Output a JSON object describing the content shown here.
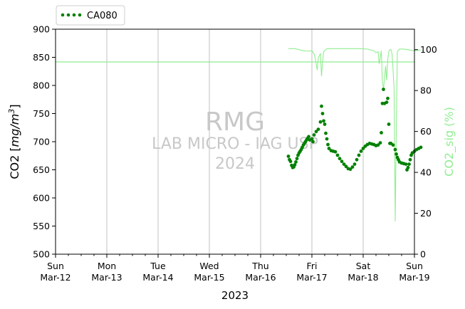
{
  "chart_data": {
    "type": "scatter",
    "title": "",
    "xlabel": "2023",
    "ylabel": "CO2 [mg/m³]",
    "ylabel_base": "CO2 [",
    "ylabel_unit": "mg/m",
    "ylabel_exp": "3",
    "ylabel_close": "]",
    "y2label": "CO2_sig (%)",
    "xlim": [
      "2023-03-12",
      "2023-03-19"
    ],
    "ylim": [
      500,
      900
    ],
    "y2lim": [
      0,
      110
    ],
    "y_ticks": [
      500,
      550,
      600,
      650,
      700,
      750,
      800,
      850,
      900
    ],
    "y2_ticks": [
      0,
      20,
      40,
      60,
      80,
      100
    ],
    "x_ticks": [
      {
        "date": "2023-03-12",
        "line1": "Sun",
        "line2": "Mar-12"
      },
      {
        "date": "2023-03-13",
        "line1": "Mon",
        "line2": "Mar-13"
      },
      {
        "date": "2023-03-14",
        "line1": "Tue",
        "line2": "Mar-14"
      },
      {
        "date": "2023-03-15",
        "line1": "Wed",
        "line2": "Mar-15"
      },
      {
        "date": "2023-03-16",
        "line1": "Thu",
        "line2": "Mar-16"
      },
      {
        "date": "2023-03-17",
        "line1": "Fri",
        "line2": "Mar-17"
      },
      {
        "date": "2023-03-18",
        "line1": "Sat",
        "line2": "Mar-18"
      },
      {
        "date": "2023-03-19",
        "line1": "Sun",
        "line2": "Mar-19"
      }
    ],
    "grid": "vertical at day ticks",
    "legend": "top-left, outside plot",
    "reference_line": {
      "axis": "y2",
      "value": 94,
      "color": "#90ee90"
    },
    "watermark": [
      "RMG",
      "LAB MICRO - IAG USP",
      "2024"
    ],
    "series": [
      {
        "name": "CA080",
        "axis": "y",
        "style": "dots",
        "color": "#008000",
        "points": [
          [
            "2023-03-16T13:00",
            674
          ],
          [
            "2023-03-16T13:30",
            668
          ],
          [
            "2023-03-16T14:00",
            665
          ],
          [
            "2023-03-16T14:30",
            658
          ],
          [
            "2023-03-16T15:00",
            654
          ],
          [
            "2023-03-16T15:30",
            655
          ],
          [
            "2023-03-16T16:00",
            659
          ],
          [
            "2023-03-16T16:30",
            664
          ],
          [
            "2023-03-16T17:00",
            670
          ],
          [
            "2023-03-16T17:30",
            676
          ],
          [
            "2023-03-16T18:00",
            680
          ],
          [
            "2023-03-16T18:30",
            683
          ],
          [
            "2023-03-16T19:00",
            686
          ],
          [
            "2023-03-16T19:30",
            690
          ],
          [
            "2023-03-16T20:00",
            694
          ],
          [
            "2023-03-16T20:30",
            697
          ],
          [
            "2023-03-16T21:00",
            700
          ],
          [
            "2023-03-16T21:30",
            703
          ],
          [
            "2023-03-16T22:00",
            706
          ],
          [
            "2023-03-16T22:30",
            709
          ],
          [
            "2023-03-16T23:00",
            703
          ],
          [
            "2023-03-17T00:00",
            705
          ],
          [
            "2023-03-17T00:30",
            700
          ],
          [
            "2023-03-17T01:00",
            712
          ],
          [
            "2023-03-17T02:00",
            718
          ],
          [
            "2023-03-17T03:00",
            722
          ],
          [
            "2023-03-17T04:00",
            735
          ],
          [
            "2023-03-17T04:30",
            763
          ],
          [
            "2023-03-17T05:00",
            750
          ],
          [
            "2023-03-17T05:30",
            737
          ],
          [
            "2023-03-17T06:00",
            731
          ],
          [
            "2023-03-17T06:30",
            715
          ],
          [
            "2023-03-17T07:00",
            705
          ],
          [
            "2023-03-17T07:30",
            695
          ],
          [
            "2023-03-17T08:00",
            688
          ],
          [
            "2023-03-17T09:00",
            684
          ],
          [
            "2023-03-17T10:00",
            683
          ],
          [
            "2023-03-17T11:00",
            682
          ],
          [
            "2023-03-17T12:00",
            676
          ],
          [
            "2023-03-17T13:00",
            670
          ],
          [
            "2023-03-17T14:00",
            665
          ],
          [
            "2023-03-17T15:00",
            660
          ],
          [
            "2023-03-17T16:00",
            656
          ],
          [
            "2023-03-17T17:00",
            652
          ],
          [
            "2023-03-17T18:00",
            651
          ],
          [
            "2023-03-17T19:00",
            655
          ],
          [
            "2023-03-17T20:00",
            660
          ],
          [
            "2023-03-17T21:00",
            668
          ],
          [
            "2023-03-17T22:00",
            676
          ],
          [
            "2023-03-17T23:00",
            683
          ],
          [
            "2023-03-18T00:00",
            688
          ],
          [
            "2023-03-18T01:00",
            692
          ],
          [
            "2023-03-18T02:00",
            695
          ],
          [
            "2023-03-18T03:00",
            697
          ],
          [
            "2023-03-18T04:00",
            696
          ],
          [
            "2023-03-18T05:00",
            695
          ],
          [
            "2023-03-18T06:00",
            693
          ],
          [
            "2023-03-18T07:00",
            694
          ],
          [
            "2023-03-18T08:00",
            698
          ],
          [
            "2023-03-18T08:30",
            716
          ],
          [
            "2023-03-18T09:00",
            768
          ],
          [
            "2023-03-18T09:30",
            793
          ],
          [
            "2023-03-18T10:00",
            768
          ],
          [
            "2023-03-18T11:00",
            770
          ],
          [
            "2023-03-18T11:30",
            777
          ],
          [
            "2023-03-18T12:00",
            731
          ],
          [
            "2023-03-18T12:30",
            697
          ],
          [
            "2023-03-18T13:00",
            697
          ],
          [
            "2023-03-18T14:00",
            694
          ],
          [
            "2023-03-18T15:00",
            686
          ],
          [
            "2023-03-18T15:30",
            678
          ],
          [
            "2023-03-18T16:00",
            672
          ],
          [
            "2023-03-18T16:30",
            668
          ],
          [
            "2023-03-18T17:00",
            664
          ],
          [
            "2023-03-18T18:00",
            662
          ],
          [
            "2023-03-18T19:00",
            661
          ],
          [
            "2023-03-18T20:00",
            660
          ],
          [
            "2023-03-18T20:30",
            650
          ],
          [
            "2023-03-18T21:00",
            654
          ],
          [
            "2023-03-18T21:30",
            660
          ],
          [
            "2023-03-18T22:00",
            668
          ],
          [
            "2023-03-18T22:30",
            676
          ],
          [
            "2023-03-18T23:00",
            680
          ],
          [
            "2023-03-19T00:00",
            683
          ],
          [
            "2023-03-19T01:00",
            686
          ],
          [
            "2023-03-19T02:00",
            688
          ],
          [
            "2023-03-19T03:00",
            690
          ]
        ]
      },
      {
        "name": "",
        "axis": "y2",
        "style": "line",
        "color": "#90ee90",
        "points": [
          [
            "2023-03-16T13:00",
            100.5
          ],
          [
            "2023-03-16T16:00",
            100.5
          ],
          [
            "2023-03-16T18:00",
            100
          ],
          [
            "2023-03-16T20:00",
            99.5
          ],
          [
            "2023-03-16T22:00",
            99.2
          ],
          [
            "2023-03-17T00:00",
            99.5
          ],
          [
            "2023-03-17T01:00",
            98
          ],
          [
            "2023-03-17T01:30",
            96
          ],
          [
            "2023-03-17T02:00",
            93
          ],
          [
            "2023-03-17T02:30",
            90
          ],
          [
            "2023-03-17T03:00",
            96
          ],
          [
            "2023-03-17T04:00",
            98
          ],
          [
            "2023-03-17T04:30",
            87
          ],
          [
            "2023-03-17T05:00",
            94
          ],
          [
            "2023-03-17T05:30",
            99
          ],
          [
            "2023-03-17T07:00",
            100.5
          ],
          [
            "2023-03-17T10:00",
            100.5
          ],
          [
            "2023-03-17T14:00",
            100.5
          ],
          [
            "2023-03-17T18:00",
            100.5
          ],
          [
            "2023-03-17T22:00",
            100.5
          ],
          [
            "2023-03-18T02:00",
            100.3
          ],
          [
            "2023-03-18T05:00",
            99.5
          ],
          [
            "2023-03-18T06:00",
            98.5
          ],
          [
            "2023-03-18T07:00",
            99
          ],
          [
            "2023-03-18T07:30",
            93
          ],
          [
            "2023-03-18T08:00",
            96
          ],
          [
            "2023-03-18T08:30",
            99.5
          ],
          [
            "2023-03-18T09:00",
            84
          ],
          [
            "2023-03-18T09:30",
            81
          ],
          [
            "2023-03-18T10:00",
            86
          ],
          [
            "2023-03-18T10:30",
            92
          ],
          [
            "2023-03-18T11:00",
            85
          ],
          [
            "2023-03-18T11:30",
            95
          ],
          [
            "2023-03-18T12:00",
            99
          ],
          [
            "2023-03-18T12:30",
            100
          ],
          [
            "2023-03-18T13:00",
            100
          ],
          [
            "2023-03-18T13:30",
            98
          ],
          [
            "2023-03-18T14:00",
            90
          ],
          [
            "2023-03-18T14:30",
            80
          ],
          [
            "2023-03-18T15:00",
            16
          ],
          [
            "2023-03-18T15:30",
            60
          ],
          [
            "2023-03-18T16:00",
            99
          ],
          [
            "2023-03-18T17:00",
            100.3
          ],
          [
            "2023-03-18T19:00",
            100.3
          ],
          [
            "2023-03-18T21:00",
            100
          ],
          [
            "2023-03-18T23:00",
            99.5
          ],
          [
            "2023-03-19T02:00",
            99.7
          ],
          [
            "2023-03-19T03:00",
            99.8
          ]
        ]
      }
    ]
  }
}
